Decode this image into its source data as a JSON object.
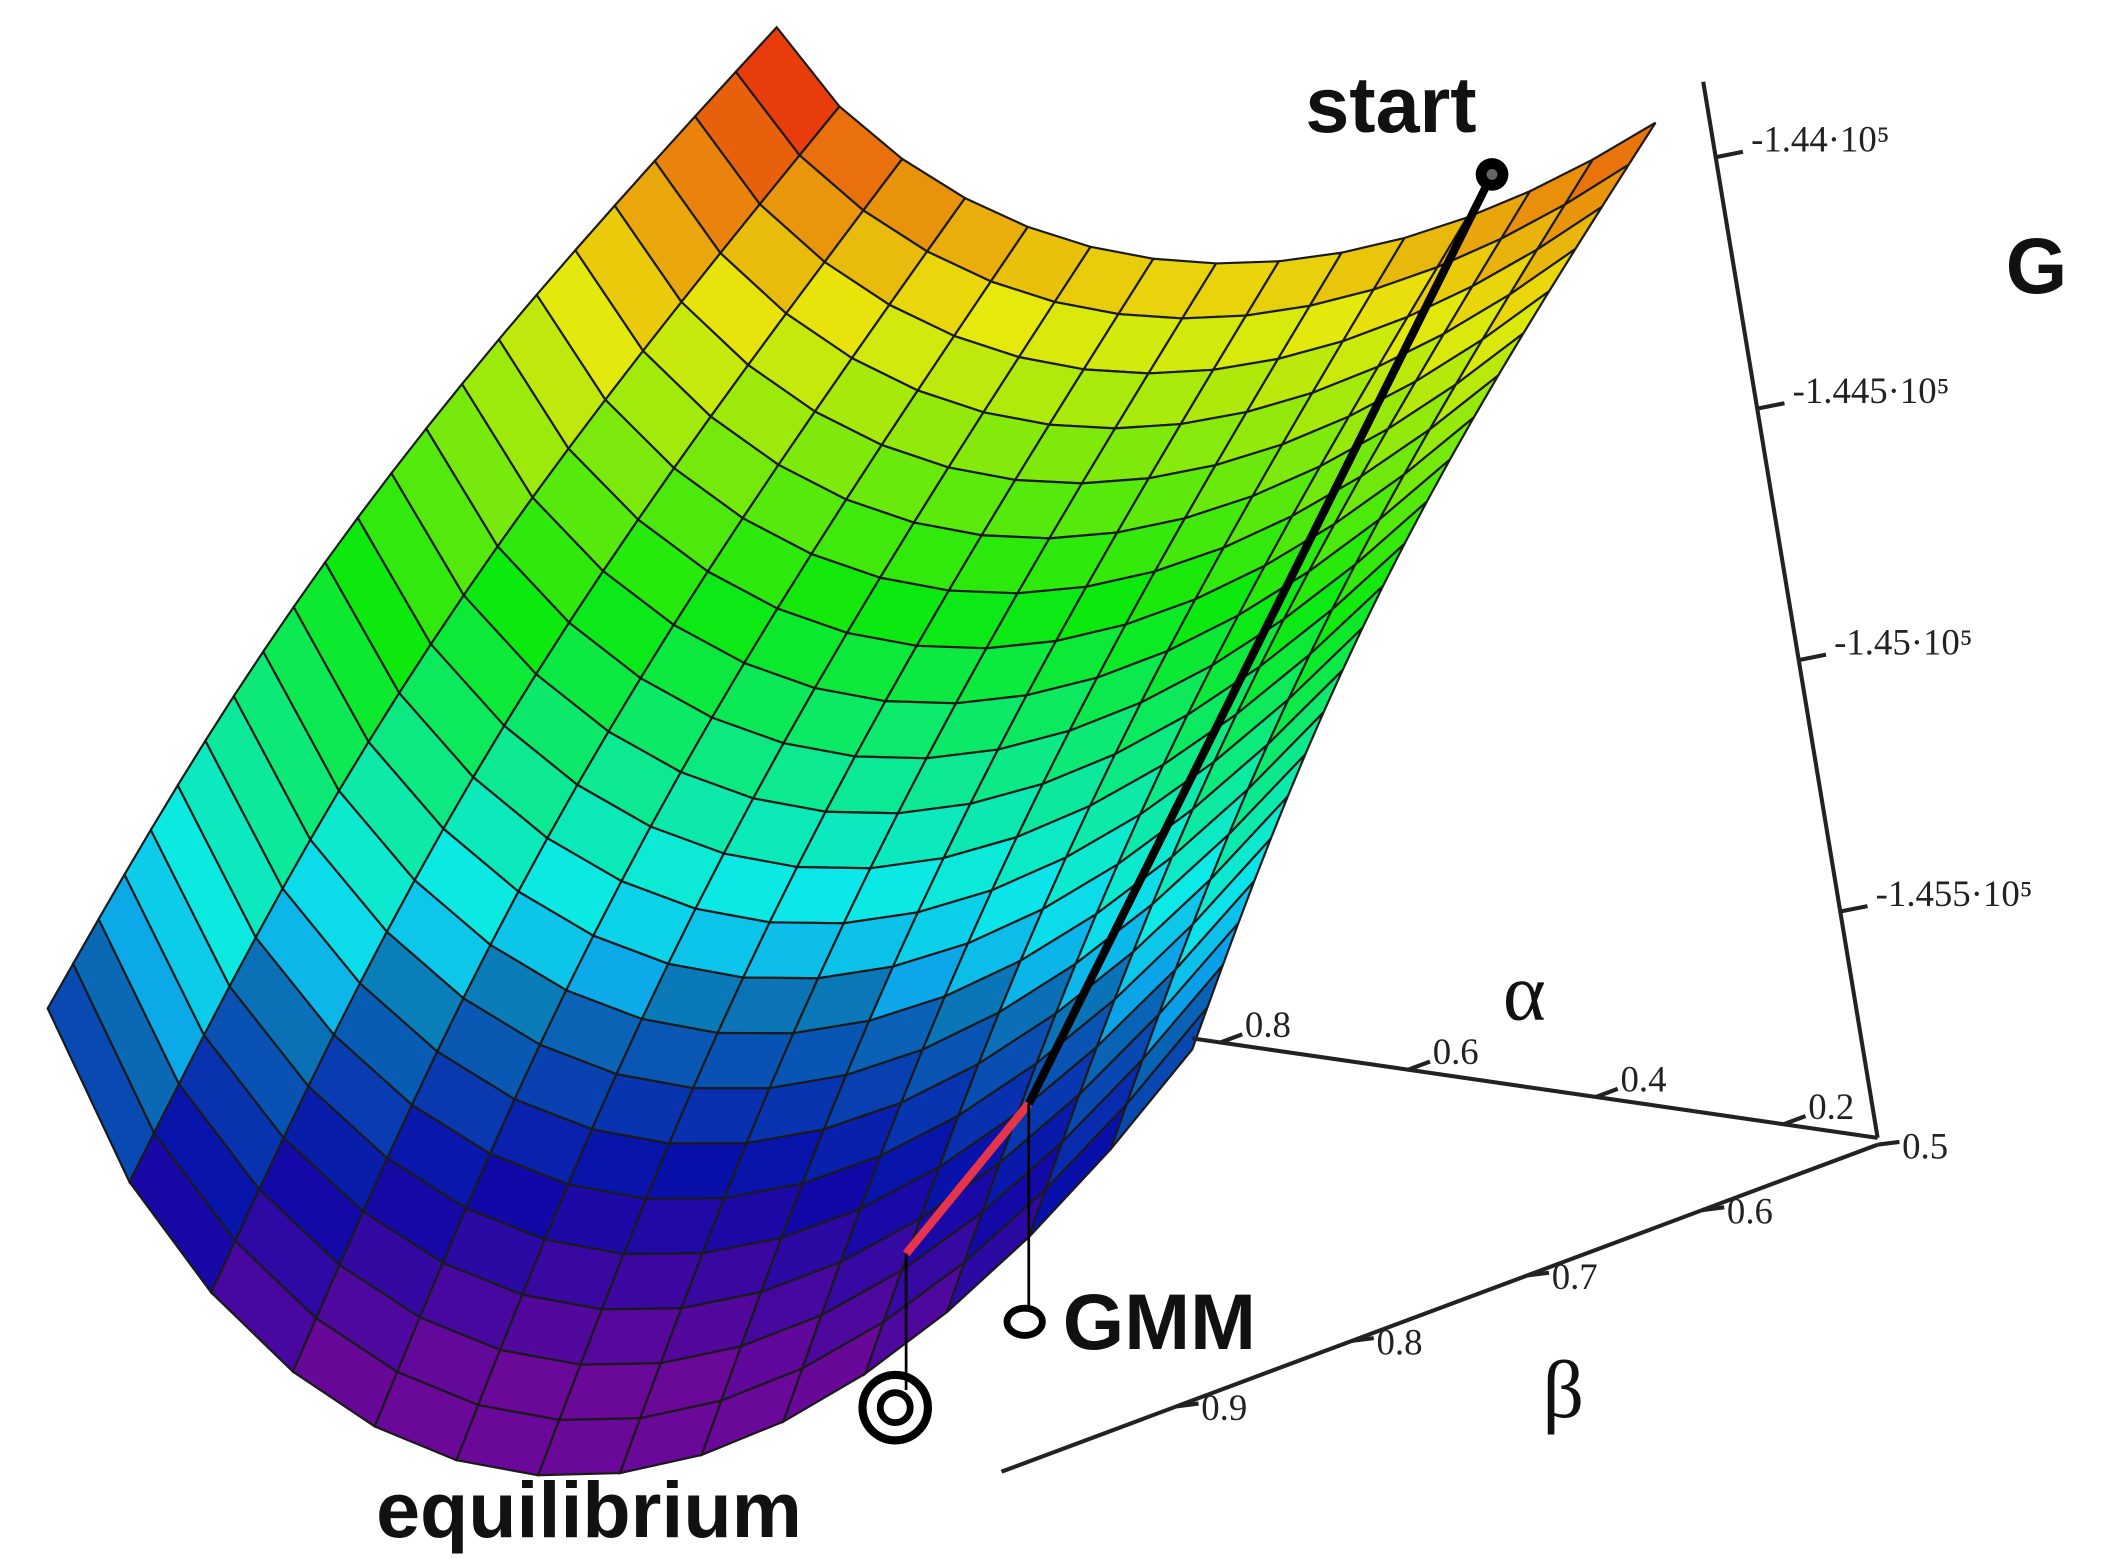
{
  "chart_data": {
    "type": "surface",
    "zlabel": "G",
    "zlim": [
      -145950,
      -143850
    ],
    "zticks": [
      {
        "value": -144000,
        "label": "-1.44·10⁵"
      },
      {
        "value": -144500,
        "label": "-1.445·10⁵"
      },
      {
        "value": -145000,
        "label": "-1.45·10⁵"
      },
      {
        "value": -145500,
        "label": "-1.455·10⁵"
      }
    ],
    "xlabel": "α",
    "xlim": [
      0.1,
      0.83
    ],
    "xticks": [
      0.8,
      0.6,
      0.4,
      0.2
    ],
    "ylabel": "β",
    "ylim": [
      0.5,
      1.0
    ],
    "yticks": [
      0.5,
      0.6,
      0.7,
      0.8,
      0.9
    ],
    "annotations": [
      "start",
      "GMM",
      "equilibrium"
    ]
  }
}
